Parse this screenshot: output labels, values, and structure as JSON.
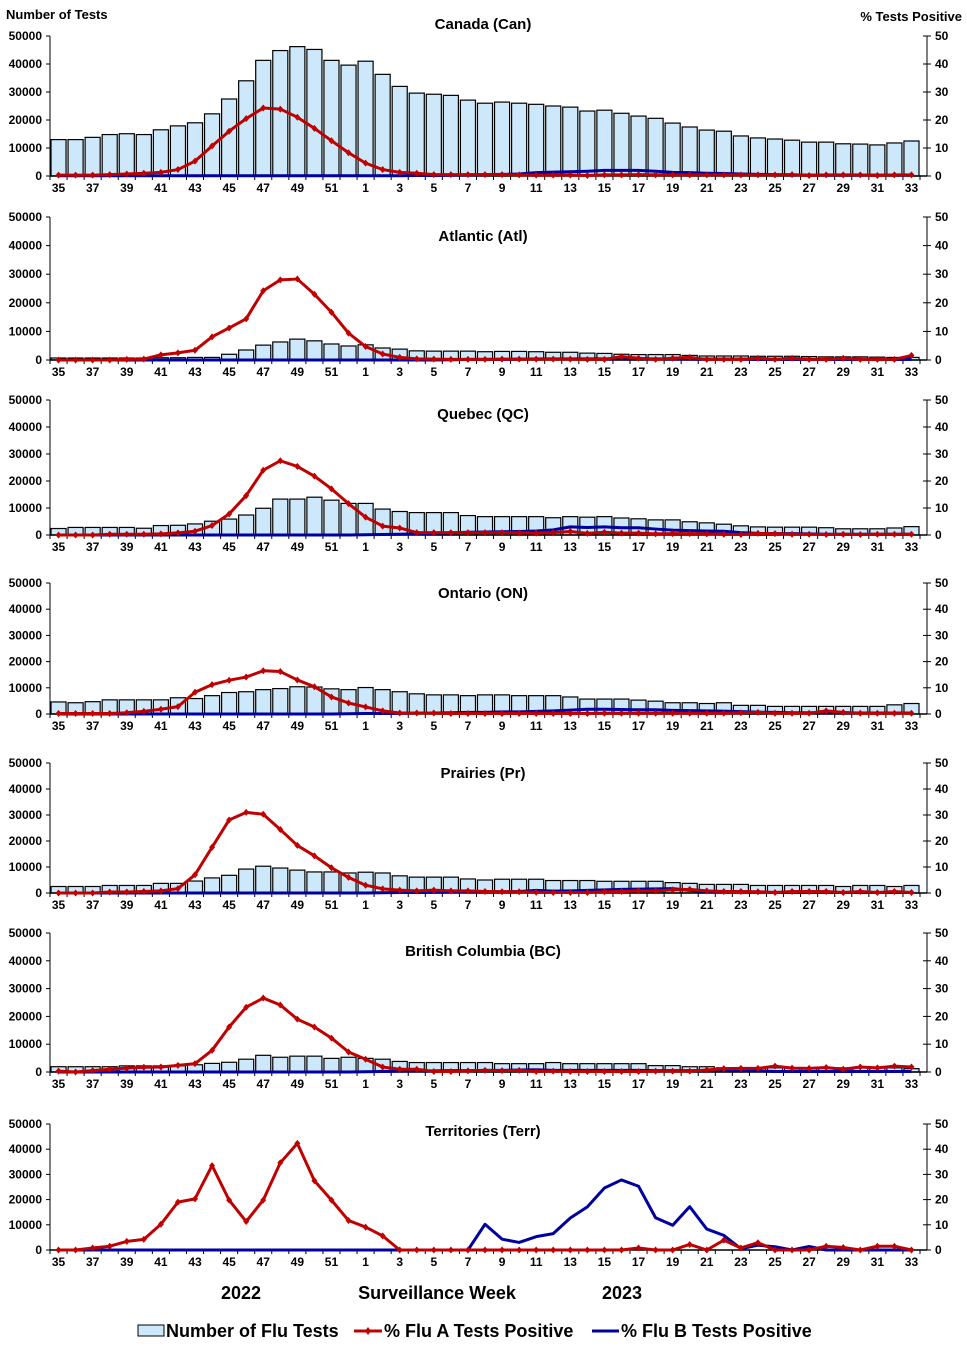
{
  "chart_data": {
    "type": "bar",
    "description": "Combined bar (number of tests, left axis) and line (% positive, right axis) charts by region",
    "left_axis_title": "Number of Tests",
    "right_axis_title": "% Tests Positive",
    "left_ylim": [
      0,
      50000
    ],
    "right_ylim": [
      0,
      50
    ],
    "left_ticks": [
      "0",
      "10000",
      "20000",
      "30000",
      "40000",
      "50000"
    ],
    "right_ticks": [
      "0",
      "10",
      "20",
      "30",
      "40",
      "50"
    ],
    "weeks": [
      35,
      36,
      37,
      38,
      39,
      40,
      41,
      42,
      43,
      44,
      45,
      46,
      47,
      48,
      49,
      50,
      51,
      52,
      1,
      2,
      3,
      4,
      5,
      6,
      7,
      8,
      9,
      10,
      11,
      12,
      13,
      14,
      15,
      16,
      17,
      18,
      19,
      20,
      21,
      22,
      23,
      24,
      25,
      26,
      27,
      28,
      29,
      30,
      31,
      32,
      33
    ],
    "x_tick_labels": [
      "35",
      "37",
      "39",
      "41",
      "43",
      "45",
      "47",
      "49",
      "51",
      "1",
      "3",
      "5",
      "7",
      "9",
      "11",
      "13",
      "15",
      "17",
      "19",
      "21",
      "23",
      "25",
      "27",
      "29",
      "31",
      "33"
    ],
    "xlabel": "Surveillance Week",
    "year_labels": [
      "2022",
      "2023"
    ],
    "legend": {
      "position": "bottom",
      "items": [
        {
          "name": "Number of Flu Tests",
          "color": "#cce8fa",
          "kind": "bar"
        },
        {
          "name": "% Flu A Tests Positive",
          "color": "#c00000",
          "kind": "line-marker"
        },
        {
          "name": "% Flu B Tests Positive",
          "color": "#0000a0",
          "kind": "line"
        }
      ]
    },
    "panels": [
      {
        "title": "Canada (Can)",
        "tests": [
          13000,
          13000,
          13800,
          14800,
          15100,
          14800,
          16500,
          17900,
          19000,
          22200,
          27500,
          34000,
          41300,
          44800,
          46200,
          45200,
          41300,
          39600,
          41000,
          36300,
          32000,
          29600,
          29200,
          28800,
          27100,
          26000,
          26400,
          26000,
          25600,
          25000,
          24600,
          23200,
          23500,
          22400,
          21400,
          20600,
          18900,
          17500,
          16400,
          16000,
          14300,
          13600,
          13200,
          12800,
          12100,
          12100,
          11500,
          11400,
          11100,
          11800,
          12500
        ],
        "flu_a": [
          0.3,
          0.3,
          0.3,
          0.5,
          0.7,
          1.0,
          1.3,
          2.3,
          5.3,
          10.7,
          16.0,
          20.5,
          24.3,
          23.9,
          21.0,
          17.0,
          12.6,
          8.3,
          4.6,
          2.3,
          1.3,
          1.0,
          0.5,
          0.5,
          0.5,
          0.5,
          0.5,
          0.4,
          0.3,
          0.3,
          0.3,
          0.2,
          0.4,
          0.4,
          0.5,
          0.4,
          0.4,
          0.4,
          0.4,
          0.4,
          0.4,
          0.4,
          0.4,
          0.5,
          0.2,
          0.4,
          0.4,
          0.4,
          0.2,
          0.4,
          0.4
        ],
        "flu_b": [
          0.1,
          0.1,
          0.1,
          0.1,
          0.1,
          0.1,
          0.1,
          0.1,
          0.1,
          0.1,
          0.1,
          0.1,
          0.1,
          0.1,
          0.1,
          0.1,
          0.1,
          0.1,
          0.1,
          0.1,
          0.1,
          0.2,
          0.2,
          0.3,
          0.4,
          0.5,
          0.6,
          0.7,
          1.2,
          1.4,
          1.5,
          1.7,
          2.0,
          2.0,
          2.0,
          1.7,
          1.3,
          1.2,
          1.0,
          0.9,
          0.7,
          0.6,
          0.5,
          0.4,
          0.3,
          0.3,
          0.3,
          0.3,
          0.3,
          0.3,
          0.3
        ]
      },
      {
        "title": "Atlantic (Atl)",
        "tests": [
          700,
          700,
          700,
          700,
          700,
          700,
          800,
          800,
          900,
          900,
          2000,
          3500,
          5200,
          6300,
          7300,
          6700,
          5600,
          4900,
          5300,
          4200,
          3800,
          3200,
          3100,
          3100,
          3100,
          2900,
          3000,
          3000,
          2900,
          2700,
          2700,
          2400,
          2300,
          2000,
          1900,
          1900,
          1900,
          1600,
          1400,
          1400,
          1400,
          1300,
          1300,
          1300,
          1200,
          1100,
          1100,
          1100,
          1000,
          900,
          900
        ],
        "flu_a": [
          0,
          0,
          0,
          0,
          0.2,
          0.3,
          1.8,
          2.5,
          3.4,
          8.1,
          11.2,
          14.4,
          24.2,
          28.0,
          28.3,
          23.0,
          16.7,
          9.4,
          4.7,
          2.1,
          0.9,
          0.4,
          0.3,
          0.2,
          0.2,
          0.2,
          0.3,
          0.3,
          0.3,
          0.3,
          0.3,
          0.2,
          0.2,
          1.2,
          0.6,
          0.2,
          0.6,
          0.9,
          0.2,
          0.2,
          0.2,
          0.6,
          0.2,
          0.6,
          0.2,
          0.2,
          0.6,
          0.2,
          0.2,
          0.2,
          1.6
        ],
        "flu_b": [
          0,
          0,
          0,
          0,
          0,
          0,
          0,
          0,
          0,
          0,
          0,
          0,
          0,
          0,
          0,
          0,
          0,
          0,
          0,
          0,
          0,
          0,
          0,
          0.1,
          0.2,
          0.2,
          0.2,
          0.3,
          0.4,
          0.4,
          0.4,
          0.4,
          0.4,
          0.5,
          0.5,
          0.4,
          0.4,
          0.3,
          0.3,
          0.3,
          0.3,
          0.2,
          0.2,
          0.2,
          0.2,
          0.2,
          0.2,
          0.2,
          0.2,
          0.2,
          0.2
        ]
      },
      {
        "title": "Quebec (QC)",
        "tests": [
          2400,
          2800,
          2800,
          2800,
          2800,
          2500,
          3500,
          3600,
          4100,
          5100,
          5900,
          7400,
          9900,
          13300,
          13300,
          14000,
          12900,
          11700,
          11700,
          9600,
          8700,
          8300,
          8300,
          8300,
          7200,
          6800,
          6800,
          6800,
          6800,
          6400,
          6800,
          6600,
          6800,
          6300,
          6000,
          5600,
          5600,
          4900,
          4500,
          4000,
          3400,
          3000,
          2900,
          2900,
          2900,
          2700,
          2300,
          2300,
          2300,
          2600,
          3100
        ],
        "flu_a": [
          0,
          0,
          0,
          0.3,
          0.3,
          0.3,
          0.4,
          0.8,
          1.4,
          3.5,
          7.8,
          14.6,
          24.0,
          27.5,
          25.4,
          21.8,
          17.1,
          11.6,
          6.6,
          3.3,
          2.6,
          0.9,
          0.9,
          0.9,
          0.9,
          0.9,
          0.9,
          0.8,
          0.7,
          0.9,
          1.3,
          0.6,
          1.0,
          0.7,
          0.7,
          0.4,
          0.5,
          0.5,
          0.4,
          0.3,
          0.2,
          0.6,
          0.5,
          0.3,
          0.3,
          0.2,
          0.3,
          0.2,
          0.3,
          0.3,
          0.3
        ],
        "flu_b": [
          0,
          0,
          0,
          0,
          0,
          0,
          0,
          0,
          0,
          0,
          0,
          0,
          0,
          0,
          0,
          0,
          0,
          0,
          0.1,
          0.2,
          0.3,
          0.4,
          0.6,
          0.8,
          1.0,
          1.1,
          1.2,
          1.3,
          1.5,
          1.9,
          3.0,
          2.8,
          3.0,
          2.7,
          2.7,
          2.2,
          1.8,
          1.6,
          1.5,
          1.4,
          0.9,
          0.6,
          0.5,
          0.5,
          0.4,
          0.3,
          0.3,
          0.3,
          0.3,
          0.3,
          0.3
        ]
      },
      {
        "title": "Ontario (ON)",
        "tests": [
          4600,
          4300,
          4700,
          5400,
          5400,
          5400,
          5400,
          6200,
          5900,
          7000,
          8200,
          8500,
          9300,
          9700,
          10400,
          10300,
          9600,
          9300,
          10100,
          9300,
          8500,
          7700,
          7300,
          7300,
          7000,
          7300,
          7300,
          7000,
          7000,
          7000,
          6500,
          5700,
          5700,
          5700,
          5300,
          4900,
          4300,
          4300,
          4000,
          4300,
          3300,
          3300,
          2900,
          2900,
          2900,
          2900,
          2900,
          2900,
          2900,
          3500,
          4000
        ],
        "flu_a": [
          0.2,
          0.2,
          0.2,
          0.2,
          0.5,
          1.0,
          1.8,
          2.8,
          8.3,
          11.2,
          12.9,
          14.1,
          16.5,
          16.2,
          13.0,
          10.4,
          6.5,
          4.2,
          2.7,
          1.2,
          0.4,
          0.4,
          0.4,
          0.2,
          0.2,
          0.2,
          0.2,
          0.2,
          0.2,
          0.2,
          0.2,
          0.2,
          0.3,
          0.3,
          0.3,
          0.3,
          0.3,
          0.3,
          0.3,
          0.3,
          0.5,
          0.6,
          0.3,
          0.3,
          0.3,
          1.2,
          0.6,
          0.3,
          0.3,
          0.3,
          0.3
        ],
        "flu_b": [
          0,
          0,
          0,
          0,
          0,
          0,
          0,
          0,
          0,
          0,
          0,
          0,
          0,
          0,
          0,
          0,
          0,
          0.1,
          0.2,
          0.2,
          0.3,
          0.4,
          0.4,
          0.5,
          0.6,
          0.6,
          0.8,
          0.8,
          1.0,
          1.2,
          1.5,
          1.8,
          1.8,
          1.7,
          1.6,
          1.6,
          1.4,
          1.3,
          1.2,
          1.1,
          0.9,
          0.7,
          0.6,
          0.5,
          0.5,
          0.5,
          0.5,
          0.4,
          0.4,
          0.4,
          0.4
        ]
      },
      {
        "title": "Prairies (Pr)",
        "tests": [
          2500,
          2500,
          2500,
          2900,
          2900,
          2900,
          3700,
          3700,
          4600,
          5800,
          6800,
          9200,
          10300,
          9600,
          8800,
          8100,
          8100,
          7700,
          8000,
          7700,
          6600,
          6100,
          6100,
          6100,
          5400,
          5000,
          5300,
          5300,
          5300,
          4800,
          4800,
          4800,
          4500,
          4500,
          4500,
          4500,
          4000,
          3700,
          3300,
          3300,
          3300,
          2900,
          2900,
          2900,
          2900,
          2900,
          2500,
          2900,
          2900,
          2500,
          2900
        ],
        "flu_a": [
          0,
          0,
          0,
          0.4,
          0.4,
          0.6,
          0.8,
          1.7,
          7.0,
          17.6,
          28.1,
          31.0,
          30.3,
          24.4,
          18.3,
          14.3,
          9.7,
          6.0,
          3.0,
          1.6,
          1.1,
          0.8,
          1.1,
          0.8,
          0.8,
          0.6,
          0.5,
          0.5,
          0.3,
          0.2,
          0.2,
          0.2,
          0.5,
          0.6,
          0.8,
          0.8,
          1.2,
          1.4,
          0.8,
          0.6,
          0.6,
          0.5,
          0.2,
          0.6,
          0.6,
          0.6,
          0.2,
          0.6,
          0.2,
          0.6,
          0.2
        ],
        "flu_b": [
          0,
          0,
          0,
          0,
          0,
          0,
          0,
          0,
          0,
          0,
          0,
          0,
          0,
          0,
          0,
          0,
          0,
          0,
          0,
          0.1,
          0.2,
          0.2,
          0.3,
          0.4,
          0.4,
          0.5,
          0.5,
          0.6,
          1.0,
          0.7,
          0.8,
          1.0,
          1.2,
          1.4,
          1.5,
          1.6,
          1.7,
          1.0,
          0.6,
          0.5,
          0.4,
          0.3,
          0.2,
          0.2,
          0.2,
          0.2,
          0.2,
          0.2,
          0.2,
          0.2,
          0.2
        ]
      },
      {
        "title": "British Columbia (BC)",
        "tests": [
          1900,
          1900,
          1900,
          1900,
          2200,
          2200,
          2200,
          2200,
          2600,
          3100,
          3500,
          4600,
          6000,
          5300,
          5700,
          5700,
          4900,
          5300,
          4900,
          4600,
          3800,
          3400,
          3400,
          3400,
          3400,
          3400,
          3000,
          3000,
          3000,
          3400,
          3000,
          3000,
          3000,
          3000,
          3000,
          2300,
          2300,
          1900,
          1900,
          1500,
          1500,
          1500,
          1500,
          1500,
          1500,
          1500,
          1500,
          1500,
          1500,
          1500,
          1200
        ],
        "flu_a": [
          0.3,
          0,
          0.5,
          1.0,
          1.4,
          1.7,
          1.8,
          2.4,
          3.0,
          7.8,
          16.2,
          23.3,
          26.6,
          24.1,
          19.0,
          16.2,
          12.2,
          7.2,
          4.6,
          1.8,
          1.0,
          1.0,
          0.2,
          0.2,
          0.4,
          0.6,
          0.5,
          0.6,
          0.2,
          0.3,
          0.2,
          0.2,
          0.2,
          0.2,
          0.2,
          0.3,
          0.3,
          0.3,
          0.7,
          1.2,
          1.3,
          1.3,
          2.1,
          1.4,
          1.3,
          1.6,
          1.0,
          1.8,
          1.5,
          2.1,
          1.8
        ],
        "flu_b": [
          0,
          0,
          0,
          0,
          0,
          0,
          0,
          0,
          0,
          0,
          0,
          0,
          0,
          0,
          0,
          0,
          0,
          0,
          0.1,
          0.2,
          0.3,
          0.4,
          0.4,
          0.5,
          0.5,
          0.6,
          0.6,
          0.7,
          0.8,
          0.6,
          0.6,
          0.6,
          0.6,
          0.6,
          0.6,
          0.5,
          0.5,
          0.5,
          0.5,
          0.5,
          0.5,
          0.4,
          0.2,
          0.2,
          0.2,
          0.2,
          0.2,
          0.2,
          0.2,
          0.2,
          0.2
        ]
      },
      {
        "title": "Territories (Terr)",
        "tests": [],
        "flu_a": [
          0,
          0,
          0.8,
          1.5,
          3.4,
          4.2,
          10.2,
          19.0,
          20.3,
          33.5,
          19.8,
          11.3,
          19.8,
          34.6,
          42.3,
          27.5,
          19.8,
          11.7,
          9.1,
          5.6,
          0,
          0,
          0,
          0,
          0,
          0,
          0,
          0,
          0,
          0,
          0,
          0,
          0,
          0,
          0.8,
          0,
          0,
          2.2,
          0,
          3.9,
          0.8,
          2.9,
          0,
          0,
          0,
          1.5,
          1.0,
          0,
          1.5,
          1.5,
          0
        ],
        "flu_b": [
          0,
          0,
          0,
          0,
          0,
          0,
          0,
          0,
          0,
          0,
          0,
          0,
          0,
          0,
          0,
          0,
          0,
          0,
          0,
          0,
          0,
          0,
          0,
          0,
          0,
          10.2,
          4.3,
          3.0,
          5.3,
          6.5,
          12.7,
          17.1,
          24.6,
          27.8,
          25.3,
          12.8,
          9.8,
          17.2,
          8.3,
          5.8,
          0.5,
          1.9,
          1.3,
          0,
          1.4,
          0,
          0,
          0,
          0,
          0,
          0
        ]
      }
    ]
  }
}
